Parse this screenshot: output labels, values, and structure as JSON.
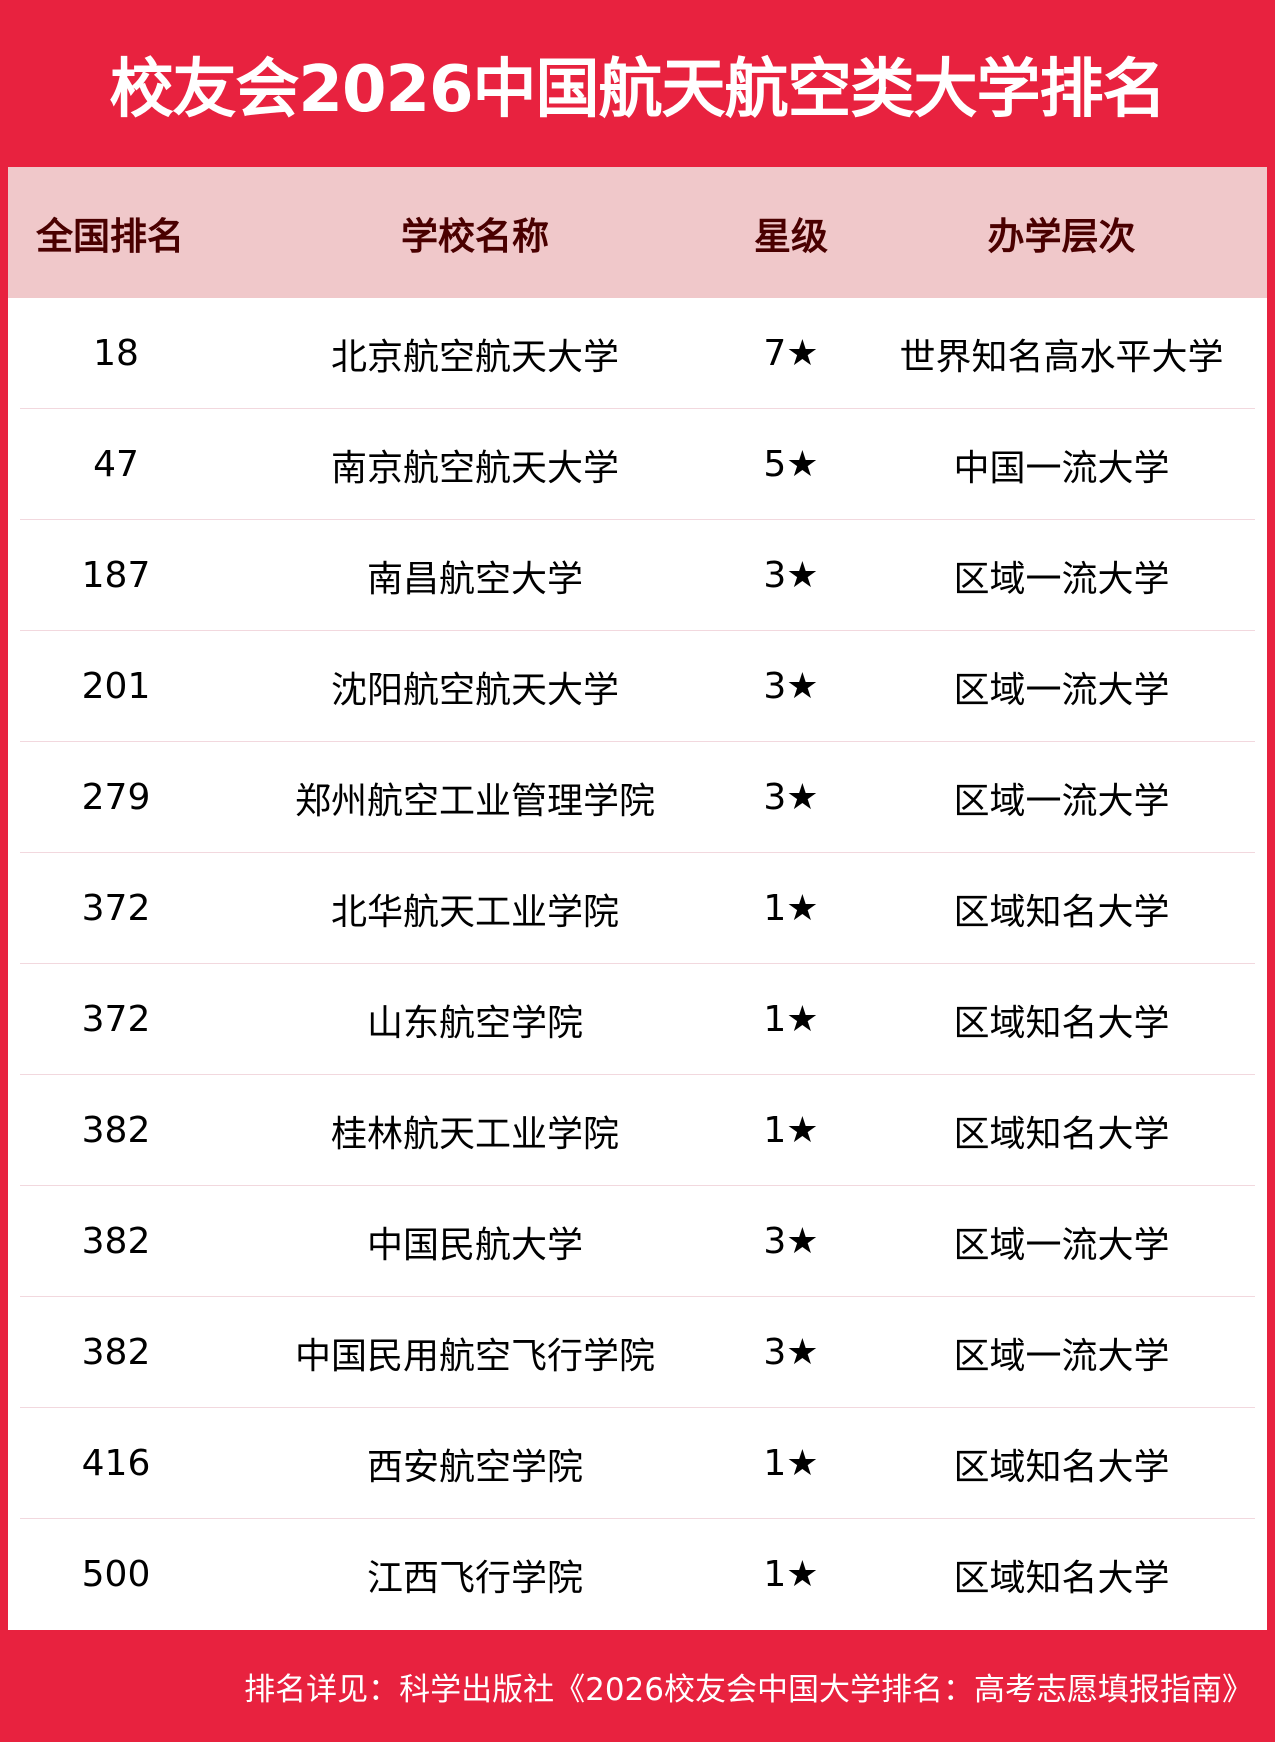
{
  "title": "校友会2026中国航天航空类大学排名",
  "table": {
    "headers": [
      "全国排名",
      "学校名称",
      "星级",
      "办学层次"
    ],
    "rows": [
      [
        "18",
        "北京航空航天大学",
        "7★",
        "世界知名高水平大学"
      ],
      [
        "47",
        "南京航空航天大学",
        "5★",
        "中国一流大学"
      ],
      [
        "187",
        "南昌航空大学",
        "3★",
        "区域一流大学"
      ],
      [
        "201",
        "沈阳航空航天大学",
        "3★",
        "区域一流大学"
      ],
      [
        "279",
        "郑州航空工业管理学院",
        "3★",
        "区域一流大学"
      ],
      [
        "372",
        "北华航天工业学院",
        "1★",
        "区域知名大学"
      ],
      [
        "372",
        "山东航空学院",
        "1★",
        "区域知名大学"
      ],
      [
        "382",
        "桂林航天工业学院",
        "1★",
        "区域知名大学"
      ],
      [
        "382",
        "中国民航大学",
        "3★",
        "区域一流大学"
      ],
      [
        "382",
        "中国民用航空飞行学院",
        "3★",
        "区域一流大学"
      ],
      [
        "416",
        "西安航空学院",
        "1★",
        "区域知名大学"
      ],
      [
        "500",
        "江西飞行学院",
        "1★",
        "区域知名大学"
      ]
    ]
  },
  "footer": "排名详见：科学出版社《2026校友会中国大学排名：高考志愿填报指南》",
  "colors": {
    "brand_red": "#e8223f",
    "header_bg": "#f0c8ca",
    "header_text": "#4a0000"
  }
}
